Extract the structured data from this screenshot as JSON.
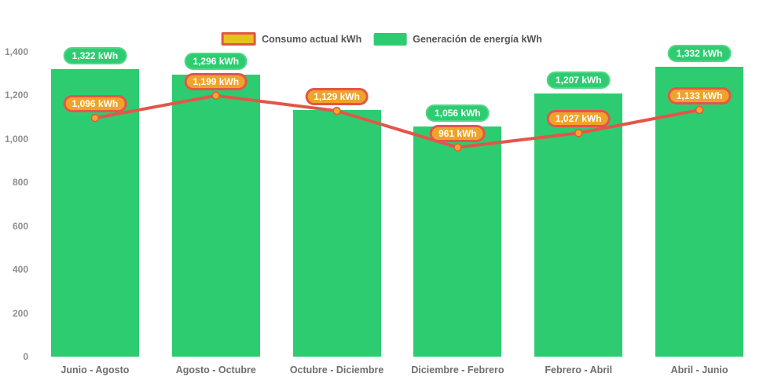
{
  "page": {
    "background": "#ffffff"
  },
  "legend": {
    "items": [
      {
        "label": "Consumo actual kWh",
        "swatch": "line-swatch",
        "fill": "#E6C21D",
        "border": "#E25649"
      },
      {
        "label": "Generación de energía kWh",
        "swatch": "bar-swatch",
        "fill": "#2ECC71",
        "border": null
      }
    ]
  },
  "chart_data": {
    "type": "bar",
    "subtype": "bar+line combo",
    "categories": [
      "Junio - Agosto",
      "Agosto - Octubre",
      "Octubre - Diciembre",
      "Diciembre - Febrero",
      "Febrero - Abril",
      "Abril - Junio"
    ],
    "series": [
      {
        "name": "Generación de energía kWh",
        "type": "bar",
        "color": "#2ECC71",
        "values": [
          1322,
          1296,
          1134,
          1056,
          1207,
          1332
        ],
        "labels": [
          "1,322 kWh",
          "1,296 kWh",
          null,
          "1,056 kWh",
          "1,207 kWh",
          "1,332 kWh"
        ],
        "note": "third bar label hidden behind consumption label; value estimated from bar height"
      },
      {
        "name": "Consumo actual kWh",
        "type": "line",
        "color": "#E25649",
        "marker_color": "#F6A823",
        "values": [
          1096,
          1199,
          1129,
          961,
          1027,
          1133
        ],
        "labels": [
          "1,096 kWh",
          "1,199 kWh",
          "1,129 kWh",
          "961 kWh",
          "1,027 kWh",
          "1,133 kWh"
        ]
      }
    ],
    "title": "",
    "xlabel": "",
    "ylabel": "",
    "ylim": [
      0,
      1400
    ],
    "yticks": [
      "1,400",
      "1,200",
      "1,000",
      "800",
      "600",
      "400",
      "200",
      "0"
    ],
    "ytick_values": [
      1400,
      1200,
      1000,
      800,
      600,
      400,
      200,
      0
    ],
    "grid": false,
    "legend_position": "top-center"
  },
  "colors": {
    "bar_green": "#2ECC71",
    "badge_green_border": "#53D68A",
    "line_red": "#E25649",
    "badge_orange_fill": "#F0A32A",
    "marker_orange": "#F6A823",
    "legend_yellow": "#E6C21D",
    "ytick_gray": "#8F8F8F",
    "xlabel_gray": "#6E6E6E"
  }
}
